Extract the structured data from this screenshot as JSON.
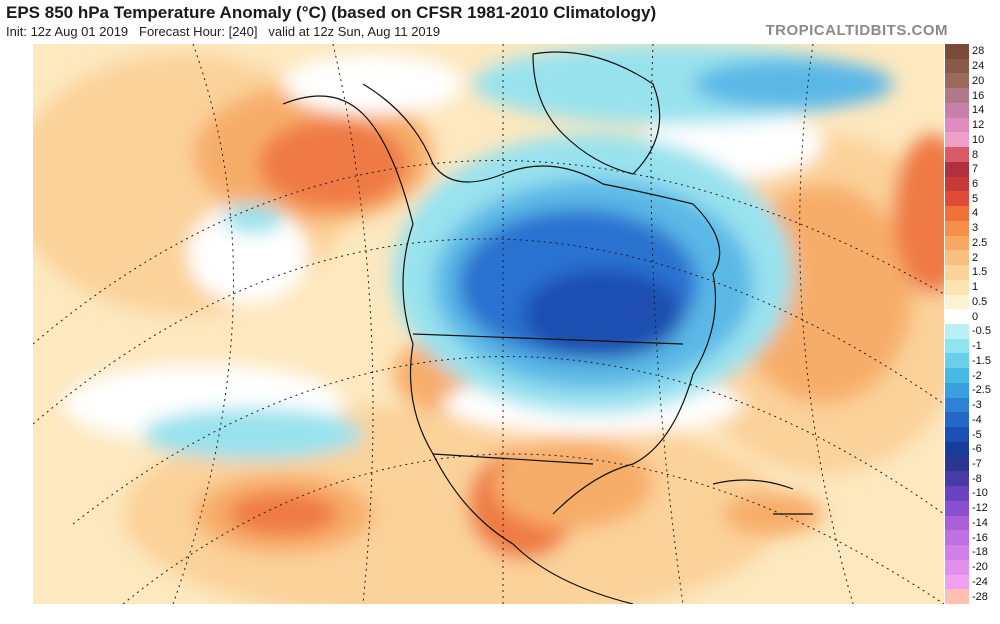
{
  "header": {
    "title": "EPS 850 hPa Temperature Anomaly (°C) (based on CFSR 1981-2010 Climatology)",
    "init": "Init: 12z Aug 01 2019",
    "forecast_hour": "Forecast Hour: [240]",
    "valid": "valid at 12z Sun, Aug 11 2019",
    "brand": "TROPICALTIDBITS.COM"
  },
  "colorbar": {
    "labels": [
      "28",
      "24",
      "20",
      "16",
      "14",
      "12",
      "10",
      "8",
      "7",
      "6",
      "5",
      "4",
      "3",
      "2.5",
      "2",
      "1.5",
      "1",
      "0.5",
      "0",
      "-0.5",
      "-1",
      "-1.5",
      "-2",
      "-2.5",
      "-3",
      "-4",
      "-5",
      "-6",
      "-7",
      "-8",
      "-10",
      "-12",
      "-14",
      "-16",
      "-18",
      "-20",
      "-24",
      "-28"
    ],
    "colors": [
      "#7a4a36",
      "#8a5a48",
      "#9a6a5a",
      "#b07888",
      "#c880a8",
      "#e08cc0",
      "#f0a0c8",
      "#d85a68",
      "#b03040",
      "#c83a3a",
      "#e04a38",
      "#f0703a",
      "#f59048",
      "#f8a860",
      "#fac080",
      "#fcd49a",
      "#fde4b0",
      "#fef3d0",
      "#ffffff",
      "#b8f0f4",
      "#90e4ee",
      "#6ad0ea",
      "#48b8e6",
      "#3a9ee0",
      "#2e82d6",
      "#2468c8",
      "#1c50b4",
      "#183c9c",
      "#2a3690",
      "#4a3aa8",
      "#6a44c0",
      "#8a50d0",
      "#a860d8",
      "#c070e0",
      "#d080e6",
      "#e090ea",
      "#f0a0ee",
      "#ffc0b0"
    ]
  },
  "palette": {
    "ocean_base": "#fde8bf",
    "warm_light": "#fbd29a",
    "warm_mid": "#f7ad6a",
    "warm_strong": "#ef7a45",
    "warm_hot": "#d9533a",
    "cool_light": "#98e2ee",
    "cool_mid": "#5ab8e6",
    "cool_strong": "#2c72d0",
    "cool_deep": "#1d4fb0",
    "neutral": "#ffffff",
    "land_lines": "#111111",
    "grid_lines": "#222222"
  }
}
